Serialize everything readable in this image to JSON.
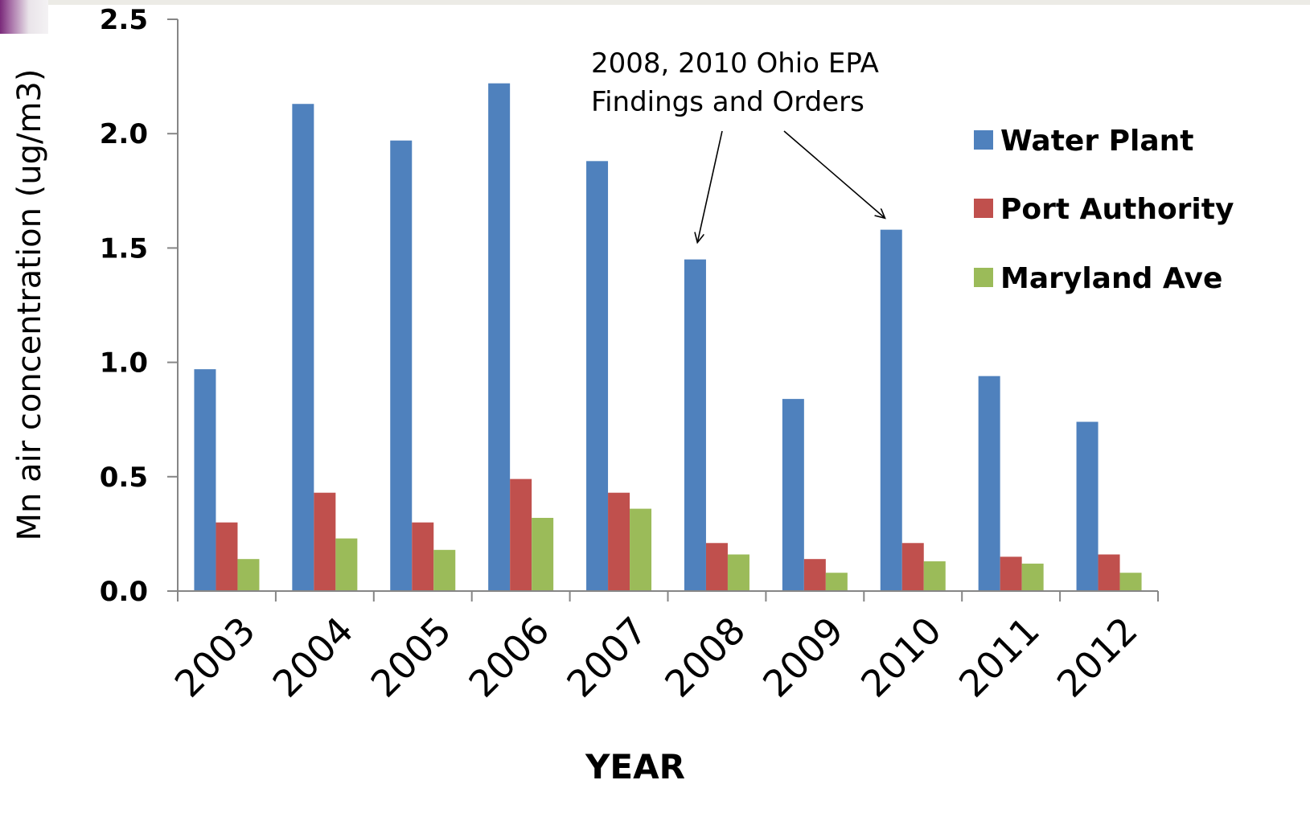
{
  "chart_data": {
    "type": "bar",
    "title": "",
    "xlabel": "YEAR",
    "ylabel": "Mn air concentration (ug/m3)",
    "ylim": [
      0,
      2.5
    ],
    "yticks": [
      "0.0",
      "0.5",
      "1.0",
      "1.5",
      "2.0",
      "2.5"
    ],
    "ytick_values": [
      0,
      0.5,
      1.0,
      1.5,
      2.0,
      2.5
    ],
    "categories": [
      "2003",
      "2004",
      "2005",
      "2006",
      "2007",
      "2008",
      "2009",
      "2010",
      "2011",
      "2012"
    ],
    "series": [
      {
        "name": "Water Plant",
        "color": "#4f81bd",
        "values": [
          0.97,
          2.13,
          1.97,
          2.22,
          1.88,
          1.45,
          0.84,
          1.58,
          0.94,
          0.74
        ]
      },
      {
        "name": "Port Authority",
        "color": "#c0504d",
        "values": [
          0.3,
          0.43,
          0.3,
          0.49,
          0.43,
          0.21,
          0.14,
          0.21,
          0.15,
          0.16
        ]
      },
      {
        "name": "Maryland Ave",
        "color": "#9bbb59",
        "values": [
          0.14,
          0.23,
          0.18,
          0.32,
          0.36,
          0.16,
          0.08,
          0.13,
          0.12,
          0.08
        ]
      }
    ],
    "grid": false,
    "legend": "right",
    "annotation": {
      "lines": [
        "2008, 2010 Ohio EPA",
        "Findings and Orders"
      ],
      "targets": [
        "2008",
        "2010"
      ]
    }
  }
}
